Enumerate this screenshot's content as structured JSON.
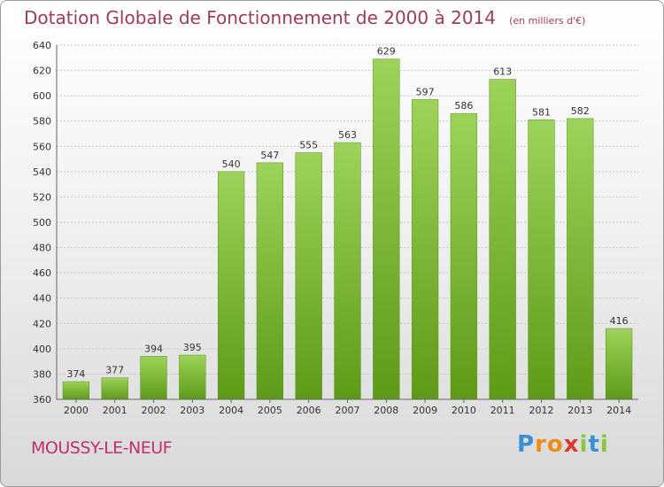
{
  "chart_data": {
    "type": "bar",
    "title": "Dotation Globale de Fonctionnement de 2000 à 2014",
    "unit_note": "(en milliers d'€)",
    "categories": [
      "2000",
      "2001",
      "2002",
      "2003",
      "2004",
      "2005",
      "2006",
      "2007",
      "2008",
      "2009",
      "2010",
      "2011",
      "2012",
      "2013",
      "2014"
    ],
    "values": [
      374,
      377,
      394,
      395,
      540,
      547,
      555,
      563,
      629,
      597,
      586,
      613,
      581,
      582,
      416
    ],
    "ylim": [
      360,
      640
    ],
    "yticks": [
      360,
      380,
      400,
      420,
      440,
      460,
      480,
      500,
      520,
      540,
      560,
      580,
      600,
      620,
      640
    ],
    "grid": true,
    "bar_color_top": "#9dd35a",
    "bar_color_bottom": "#5e9a18"
  },
  "commune": "MOUSSY-LE-NEUF",
  "logo": {
    "letters": [
      "P",
      "r",
      "o",
      "x",
      "i",
      "t",
      "i"
    ],
    "colors": [
      "#3a8fd6",
      "#f08a1c",
      "#f08a1c",
      "#d93a2b",
      "#8cc63f",
      "#3a8fd6",
      "#8cc63f"
    ]
  }
}
